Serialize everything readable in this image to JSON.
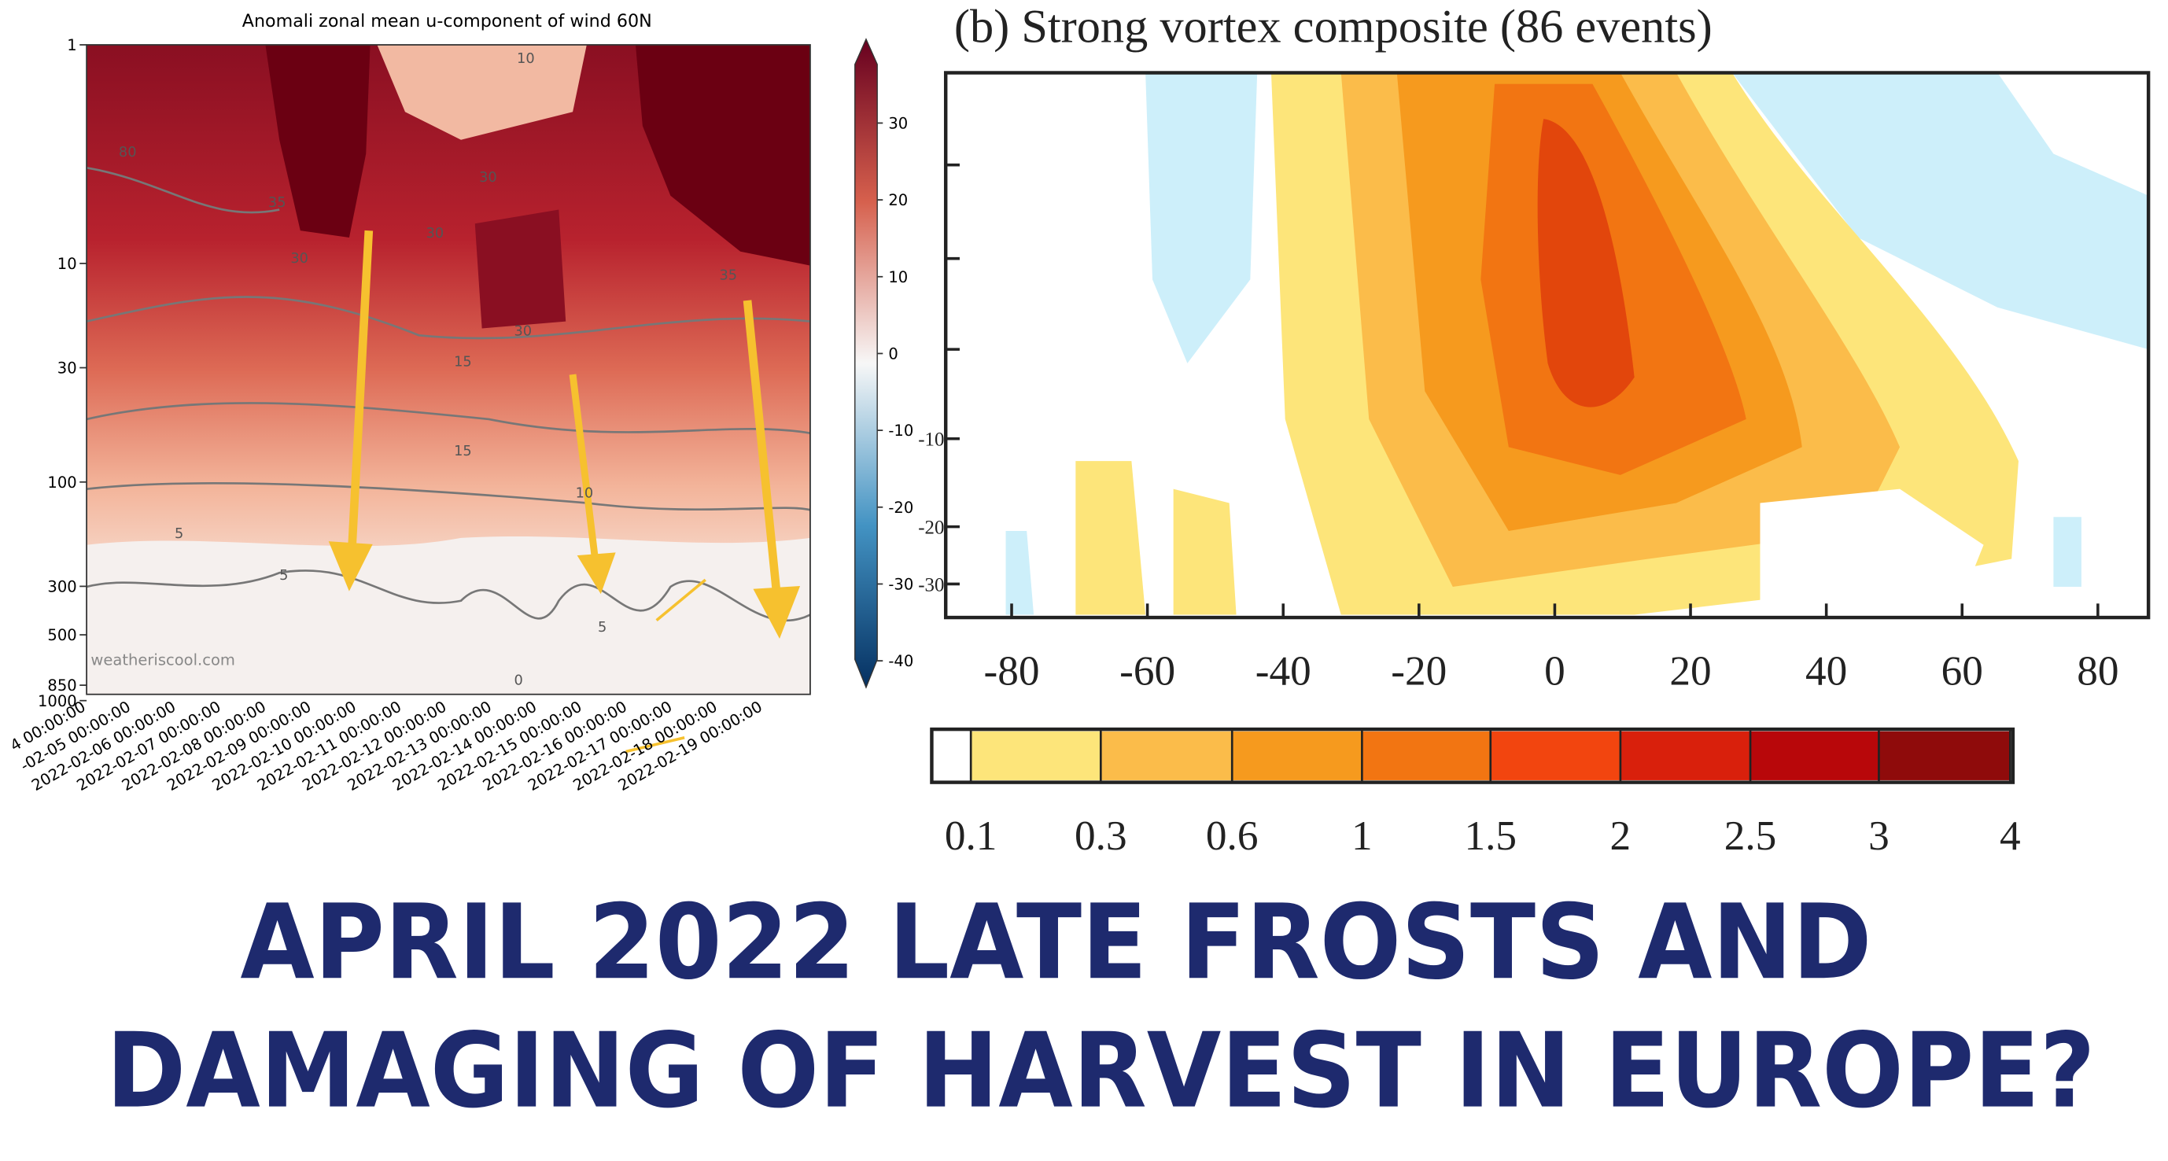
{
  "left_chart": {
    "title": "Anomali zonal mean u-component of wind 60N",
    "yticks": [
      1,
      10,
      30,
      100,
      300,
      500,
      850,
      1000
    ],
    "xticks": [
      "4 00:00:00",
      "-02-05 00:00:00",
      "2022-02-06 00:00:00",
      "2022-02-07 00:00:00",
      "2022-02-08 00:00:00",
      "2022-02-09 00:00:00",
      "2022-02-10 00:00:00",
      "2022-02-11 00:00:00",
      "2022-02-12 00:00:00",
      "2022-02-13 00:00:00",
      "2022-02-14 00:00:00",
      "2022-02-15 00:00:00",
      "2022-02-16 00:00:00",
      "2022-02-17 00:00:00",
      "2022-02-18 00:00:00",
      "2022-02-19 00:00:00"
    ],
    "colorbar_ticks": [
      30,
      20,
      10,
      0,
      -10,
      -20,
      -30,
      -40
    ],
    "contour_labels": [
      "10",
      "80",
      "30",
      "35",
      "30",
      "30",
      "30",
      "35",
      "15",
      "15",
      "10",
      "5",
      "5",
      "5",
      "0"
    ],
    "watermark": "weatheriscool.com"
  },
  "right_chart": {
    "title": "(b) Strong vortex composite (86 events)",
    "yticks": [
      -10,
      -20,
      -30
    ],
    "xticks": [
      -80,
      -60,
      -40,
      -20,
      0,
      20,
      40,
      60,
      80
    ],
    "colorbar_ticks": [
      0.1,
      0.3,
      0.6,
      1,
      1.5,
      2,
      2.5,
      3,
      4
    ]
  },
  "headline": [
    "APRIL 2022 LATE FROSTS AND",
    "DAMAGING OF HARVEST IN EUROPE?"
  ]
}
